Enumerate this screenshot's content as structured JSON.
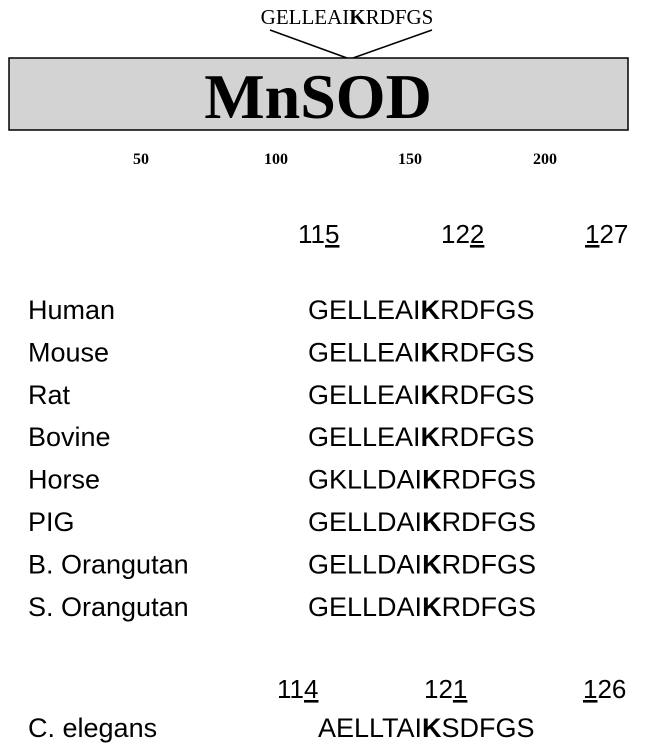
{
  "header": {
    "peptide": [
      {
        "text": "GELLEAI"
      },
      {
        "text": "K",
        "style": "bold"
      },
      {
        "text": "RDFGS"
      }
    ],
    "protein": "MnSOD",
    "ruler": [
      "50",
      "100",
      "150",
      "200"
    ]
  },
  "alignment": {
    "positions": [
      [
        {
          "text": "11"
        },
        {
          "text": "5",
          "style": "underline"
        }
      ],
      [
        {
          "text": "12"
        },
        {
          "text": "2",
          "style": "underline"
        }
      ],
      [
        {
          "text": "1",
          "style": "underline"
        },
        {
          "text": "27"
        }
      ]
    ],
    "rows": [
      {
        "species": "Human",
        "sequence": [
          {
            "text": "GELLEAI"
          },
          {
            "text": "K",
            "style": "bold"
          },
          {
            "text": "RDFGS"
          }
        ]
      },
      {
        "species": "Mouse",
        "sequence": [
          {
            "text": "GELLEAI"
          },
          {
            "text": "K",
            "style": "bold"
          },
          {
            "text": "RDFGS"
          }
        ]
      },
      {
        "species": "Rat",
        "sequence": [
          {
            "text": "GELLEAI"
          },
          {
            "text": "K",
            "style": "bold"
          },
          {
            "text": "RDFGS"
          }
        ]
      },
      {
        "species": "Bovine",
        "sequence": [
          {
            "text": "GELLEAI"
          },
          {
            "text": "K",
            "style": "bold"
          },
          {
            "text": "RDFGS"
          }
        ]
      },
      {
        "species": "Horse",
        "sequence": [
          {
            "text": "GKLLDAI"
          },
          {
            "text": "K",
            "style": "bold"
          },
          {
            "text": "RDFGS"
          }
        ]
      },
      {
        "species": "PIG",
        "sequence": [
          {
            "text": "GELLDAI"
          },
          {
            "text": "K",
            "style": "bold"
          },
          {
            "text": "RDFGS"
          }
        ]
      },
      {
        "species": "B. Orangutan",
        "sequence": [
          {
            "text": "GELLDAI"
          },
          {
            "text": "K",
            "style": "bold"
          },
          {
            "text": "RDFGS"
          }
        ]
      },
      {
        "species": "S. Orangutan",
        "sequence": [
          {
            "text": "GELLDAI"
          },
          {
            "text": "K",
            "style": "bold"
          },
          {
            "text": "RDFGS"
          }
        ]
      }
    ],
    "worm_positions": [
      [
        {
          "text": "11"
        },
        {
          "text": "4",
          "style": "underline"
        }
      ],
      [
        {
          "text": "12"
        },
        {
          "text": "1",
          "style": "underline"
        }
      ],
      [
        {
          "text": "1",
          "style": "underline"
        },
        {
          "text": "26"
        }
      ]
    ],
    "worm": {
      "species": "C. elegans",
      "sequence": [
        {
          "text": "AELLTAI"
        },
        {
          "text": "K",
          "style": "bold"
        },
        {
          "text": "SDFGS"
        }
      ]
    }
  }
}
